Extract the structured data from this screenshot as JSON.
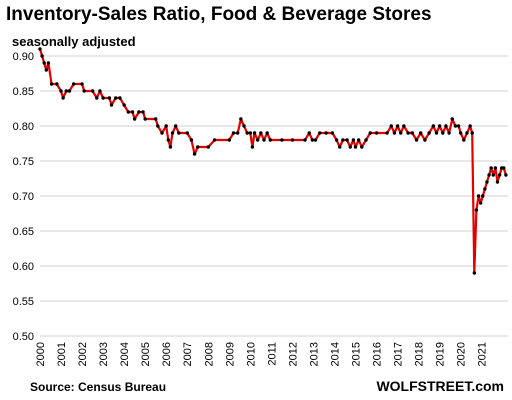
{
  "chart_data": {
    "type": "line",
    "title": "Inventory-Sales Ratio, Food & Beverage Stores",
    "subtitle": "seasonally adjusted",
    "xlabel": "",
    "ylabel": "",
    "ylim": [
      0.5,
      0.9
    ],
    "yticks": [
      "0.90",
      "0.85",
      "0.80",
      "0.75",
      "0.70",
      "0.65",
      "0.60",
      "0.55",
      "0.50"
    ],
    "xticks": [
      "2000",
      "2001",
      "2002",
      "2003",
      "2004",
      "2005",
      "2006",
      "2007",
      "2008",
      "2009",
      "2010",
      "2011",
      "2012",
      "2013",
      "2014",
      "2015",
      "2016",
      "2017",
      "2018",
      "2019",
      "2020",
      "2021"
    ],
    "grid": "horizontal",
    "line_color": "#e00000",
    "marker_color": "#000000",
    "series": [
      {
        "points": [
          [
            2000.0,
            0.91
          ],
          [
            2000.1,
            0.9
          ],
          [
            2000.2,
            0.89
          ],
          [
            2000.3,
            0.88
          ],
          [
            2000.4,
            0.89
          ],
          [
            2000.55,
            0.86
          ],
          [
            2000.8,
            0.86
          ],
          [
            2001.0,
            0.85
          ],
          [
            2001.1,
            0.84
          ],
          [
            2001.25,
            0.85
          ],
          [
            2001.4,
            0.85
          ],
          [
            2001.6,
            0.86
          ],
          [
            2002.0,
            0.86
          ],
          [
            2002.1,
            0.85
          ],
          [
            2002.5,
            0.85
          ],
          [
            2002.7,
            0.84
          ],
          [
            2002.85,
            0.85
          ],
          [
            2003.0,
            0.84
          ],
          [
            2003.3,
            0.84
          ],
          [
            2003.4,
            0.83
          ],
          [
            2003.6,
            0.84
          ],
          [
            2003.8,
            0.84
          ],
          [
            2004.0,
            0.83
          ],
          [
            2004.2,
            0.82
          ],
          [
            2004.4,
            0.82
          ],
          [
            2004.5,
            0.81
          ],
          [
            2004.7,
            0.82
          ],
          [
            2004.9,
            0.82
          ],
          [
            2005.0,
            0.81
          ],
          [
            2005.5,
            0.81
          ],
          [
            2005.6,
            0.8
          ],
          [
            2005.8,
            0.79
          ],
          [
            2006.0,
            0.8
          ],
          [
            2006.1,
            0.78
          ],
          [
            2006.2,
            0.77
          ],
          [
            2006.3,
            0.79
          ],
          [
            2006.45,
            0.8
          ],
          [
            2006.6,
            0.79
          ],
          [
            2007.0,
            0.79
          ],
          [
            2007.2,
            0.78
          ],
          [
            2007.35,
            0.76
          ],
          [
            2007.5,
            0.77
          ],
          [
            2008.0,
            0.77
          ],
          [
            2008.3,
            0.78
          ],
          [
            2009.0,
            0.78
          ],
          [
            2009.2,
            0.79
          ],
          [
            2009.4,
            0.79
          ],
          [
            2009.55,
            0.81
          ],
          [
            2009.7,
            0.8
          ],
          [
            2009.85,
            0.79
          ],
          [
            2010.0,
            0.79
          ],
          [
            2010.1,
            0.77
          ],
          [
            2010.2,
            0.79
          ],
          [
            2010.35,
            0.78
          ],
          [
            2010.5,
            0.79
          ],
          [
            2010.65,
            0.78
          ],
          [
            2010.8,
            0.79
          ],
          [
            2010.95,
            0.78
          ],
          [
            2011.5,
            0.78
          ],
          [
            2012.0,
            0.78
          ],
          [
            2012.6,
            0.78
          ],
          [
            2012.8,
            0.79
          ],
          [
            2012.95,
            0.78
          ],
          [
            2013.1,
            0.78
          ],
          [
            2013.3,
            0.79
          ],
          [
            2013.6,
            0.79
          ],
          [
            2013.9,
            0.79
          ],
          [
            2014.1,
            0.78
          ],
          [
            2014.25,
            0.77
          ],
          [
            2014.4,
            0.78
          ],
          [
            2014.6,
            0.78
          ],
          [
            2014.75,
            0.77
          ],
          [
            2014.9,
            0.78
          ],
          [
            2015.0,
            0.77
          ],
          [
            2015.15,
            0.78
          ],
          [
            2015.3,
            0.77
          ],
          [
            2015.5,
            0.78
          ],
          [
            2015.7,
            0.79
          ],
          [
            2016.0,
            0.79
          ],
          [
            2016.5,
            0.79
          ],
          [
            2016.7,
            0.8
          ],
          [
            2016.85,
            0.79
          ],
          [
            2017.0,
            0.8
          ],
          [
            2017.15,
            0.79
          ],
          [
            2017.3,
            0.8
          ],
          [
            2017.5,
            0.79
          ],
          [
            2017.7,
            0.79
          ],
          [
            2017.9,
            0.78
          ],
          [
            2018.1,
            0.79
          ],
          [
            2018.3,
            0.78
          ],
          [
            2018.5,
            0.79
          ],
          [
            2018.7,
            0.8
          ],
          [
            2018.85,
            0.79
          ],
          [
            2019.0,
            0.8
          ],
          [
            2019.15,
            0.79
          ],
          [
            2019.3,
            0.8
          ],
          [
            2019.45,
            0.79
          ],
          [
            2019.6,
            0.81
          ],
          [
            2019.75,
            0.8
          ],
          [
            2019.9,
            0.8
          ],
          [
            2020.0,
            0.79
          ],
          [
            2020.15,
            0.78
          ],
          [
            2020.3,
            0.79
          ],
          [
            2020.45,
            0.8
          ],
          [
            2020.55,
            0.79
          ],
          [
            2020.65,
            0.59
          ],
          [
            2020.75,
            0.68
          ],
          [
            2020.85,
            0.7
          ],
          [
            2020.95,
            0.69
          ],
          [
            2021.05,
            0.7
          ],
          [
            2021.15,
            0.71
          ],
          [
            2021.25,
            0.72
          ],
          [
            2021.35,
            0.73
          ],
          [
            2021.45,
            0.74
          ],
          [
            2021.55,
            0.73
          ],
          [
            2021.65,
            0.74
          ],
          [
            2021.75,
            0.72
          ],
          [
            2021.85,
            0.73
          ],
          [
            2021.95,
            0.74
          ],
          [
            2022.05,
            0.74
          ],
          [
            2022.15,
            0.73
          ]
        ]
      }
    ]
  },
  "source_text": "Source: Census Bureau",
  "brand_text": "WOLFSTREET.com"
}
